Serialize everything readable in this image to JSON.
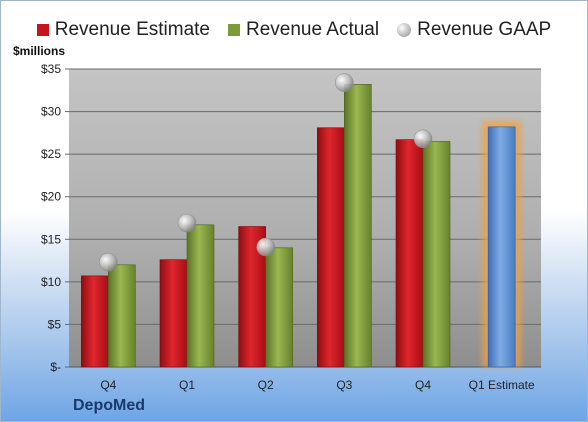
{
  "legend": [
    {
      "label": "Revenue Estimate",
      "color": "#c8141c",
      "shape": "rect"
    },
    {
      "label": "Revenue Actual",
      "color": "#7e9b3a",
      "shape": "rect"
    },
    {
      "label": "Revenue GAAP",
      "color": "#b0b0b0",
      "shape": "circle"
    }
  ],
  "unit_label": "$millions",
  "company": "DepoMed",
  "chart_data": {
    "type": "bar",
    "categories": [
      "Q4",
      "Q1",
      "Q2",
      "Q3",
      "Q4",
      "Q1 Estimate"
    ],
    "series": [
      {
        "name": "Revenue Estimate",
        "values": [
          10.7,
          12.6,
          16.5,
          28.1,
          26.7,
          null
        ],
        "color": "#c8141c"
      },
      {
        "name": "Revenue Actual",
        "values": [
          12.0,
          16.7,
          14.0,
          33.2,
          26.5,
          null
        ],
        "color": "#7e9b3a"
      },
      {
        "name": "Revenue GAAP",
        "values": [
          12.3,
          16.9,
          14.1,
          33.4,
          26.8,
          null
        ],
        "color": "#b0b0b0"
      },
      {
        "name": "Q1 Estimate",
        "values": [
          null,
          null,
          null,
          null,
          null,
          28.2
        ],
        "color": "#5b8fd6"
      }
    ],
    "ylim": [
      0,
      35
    ],
    "ytick_labels": [
      "$-",
      "$5",
      "$10",
      "$15",
      "$20",
      "$25",
      "$30",
      "$35"
    ],
    "grid": true
  }
}
